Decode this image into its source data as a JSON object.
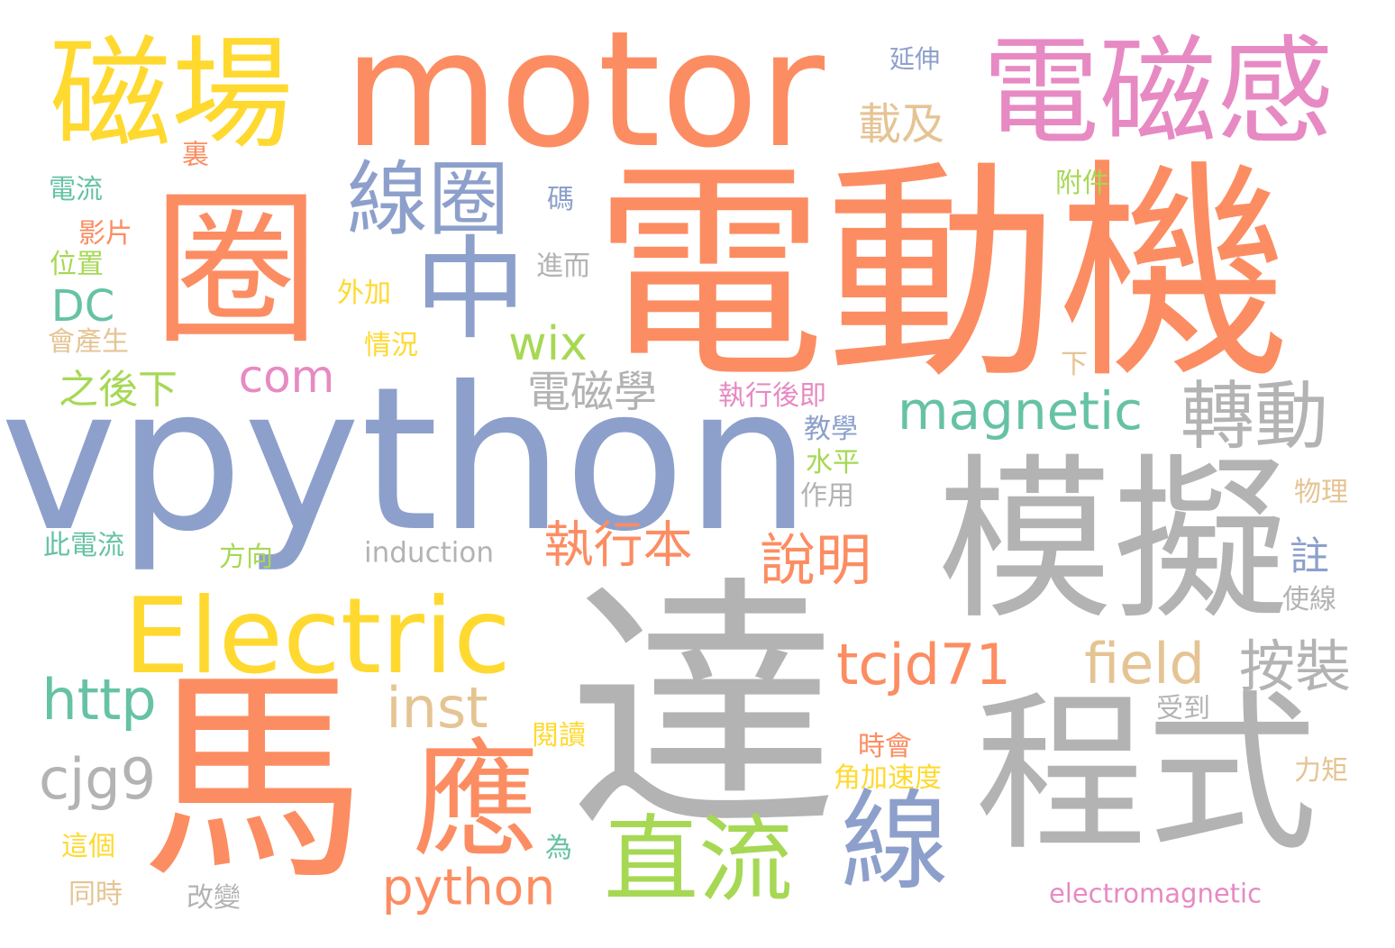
{
  "colors": {
    "orange": "#fc8d62",
    "blue": "#8da0cb",
    "pink": "#e78ac3",
    "green": "#a6d854",
    "yellow": "#ffd92f",
    "tan": "#e5c494",
    "gray": "#b3b3b3",
    "teal": "#66c2a5"
  },
  "words": [
    {
      "text": "達",
      "color": "gray"
    },
    {
      "text": "電動機",
      "color": "orange"
    },
    {
      "text": "vpython",
      "color": "blue"
    },
    {
      "text": "馬",
      "color": "orange"
    },
    {
      "text": "motor",
      "color": "orange"
    },
    {
      "text": "模擬",
      "color": "gray"
    },
    {
      "text": "程式",
      "color": "gray"
    },
    {
      "text": "圈",
      "color": "orange"
    },
    {
      "text": "Electric",
      "color": "yellow"
    },
    {
      "text": "磁場",
      "color": "yellow"
    },
    {
      "text": "電磁感",
      "color": "pink"
    },
    {
      "text": "應",
      "color": "orange"
    },
    {
      "text": "中",
      "color": "blue"
    },
    {
      "text": "線",
      "color": "blue"
    },
    {
      "text": "直流",
      "color": "green"
    },
    {
      "text": "線圈",
      "color": "blue"
    },
    {
      "text": "轉動",
      "color": "gray"
    },
    {
      "text": "magnetic",
      "color": "teal"
    },
    {
      "text": "tcjd71",
      "color": "orange"
    },
    {
      "text": "按裝",
      "color": "gray"
    },
    {
      "text": "field",
      "color": "tan"
    },
    {
      "text": "說明",
      "color": "orange"
    },
    {
      "text": "執行本",
      "color": "orange"
    },
    {
      "text": "電磁學",
      "color": "gray"
    },
    {
      "text": "inst",
      "color": "tan"
    },
    {
      "text": "cjg9",
      "color": "gray"
    },
    {
      "text": "http",
      "color": "teal"
    },
    {
      "text": "python",
      "color": "orange"
    },
    {
      "text": "載及",
      "color": "tan"
    },
    {
      "text": "wix",
      "color": "green"
    },
    {
      "text": "com",
      "color": "pink"
    },
    {
      "text": "DC",
      "color": "teal"
    },
    {
      "text": "之後下",
      "color": "green"
    },
    {
      "text": "註",
      "color": "blue"
    },
    {
      "text": "induction",
      "color": "gray"
    },
    {
      "text": "electromagnetic",
      "color": "pink"
    },
    {
      "text": "延伸",
      "color": "blue"
    },
    {
      "text": "裏",
      "color": "orange"
    },
    {
      "text": "電流",
      "color": "teal"
    },
    {
      "text": "影片",
      "color": "orange"
    },
    {
      "text": "位置",
      "color": "green"
    },
    {
      "text": "會產生",
      "color": "tan"
    },
    {
      "text": "此電流",
      "color": "teal"
    },
    {
      "text": "這個",
      "color": "yellow"
    },
    {
      "text": "同時",
      "color": "tan"
    },
    {
      "text": "改變",
      "color": "gray"
    },
    {
      "text": "為",
      "color": "teal"
    },
    {
      "text": "碼",
      "color": "blue"
    },
    {
      "text": "進而",
      "color": "gray"
    },
    {
      "text": "外加",
      "color": "yellow"
    },
    {
      "text": "情況",
      "color": "yellow"
    },
    {
      "text": "方向",
      "color": "green"
    },
    {
      "text": "閱讀",
      "color": "yellow"
    },
    {
      "text": "時會",
      "color": "orange"
    },
    {
      "text": "角加速度",
      "color": "yellow"
    },
    {
      "text": "附件",
      "color": "green"
    },
    {
      "text": "下",
      "color": "tan"
    },
    {
      "text": "執行後即",
      "color": "pink"
    },
    {
      "text": "教學",
      "color": "blue"
    },
    {
      "text": "水平",
      "color": "green"
    },
    {
      "text": "作用",
      "color": "gray"
    },
    {
      "text": "物理",
      "color": "tan"
    },
    {
      "text": "使線",
      "color": "gray"
    },
    {
      "text": "受到",
      "color": "gray"
    },
    {
      "text": "力矩",
      "color": "tan"
    }
  ]
}
